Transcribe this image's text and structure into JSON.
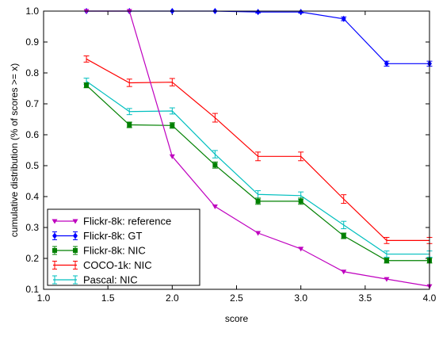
{
  "chart_data": {
    "type": "line",
    "xlabel": "score",
    "ylabel": "cumulative distribution (% of scores >= x)",
    "xlim": [
      1.0,
      4.0
    ],
    "ylim": [
      0.1,
      1.0
    ],
    "xticks": [
      "1.0",
      "1.5",
      "2.0",
      "2.5",
      "3.0",
      "3.5",
      "4.0"
    ],
    "yticks": [
      "0.1",
      "0.2",
      "0.3",
      "0.4",
      "0.5",
      "0.6",
      "0.7",
      "0.8",
      "0.9",
      "1.0"
    ],
    "grid": false,
    "legend_position": "bottom-left",
    "series": [
      {
        "name": "Flickr-8k: reference",
        "color": "#bf00bf",
        "marker": "triangle-down",
        "x": [
          1.333,
          1.667,
          2.0,
          2.333,
          2.667,
          3.0,
          3.333,
          3.667,
          4.0
        ],
        "y": [
          1.0,
          1.0,
          0.53,
          0.368,
          0.282,
          0.231,
          0.157,
          0.133,
          0.11
        ],
        "errors": [
          0,
          0,
          0,
          0,
          0,
          0,
          0,
          0,
          0
        ]
      },
      {
        "name": "Flickr-8k: GT",
        "color": "#0000ff",
        "marker": "diamond",
        "x": [
          1.333,
          1.667,
          2.0,
          2.333,
          2.667,
          3.0,
          3.333,
          3.667,
          4.0
        ],
        "y": [
          1.0,
          1.0,
          1.0,
          1.0,
          0.997,
          0.997,
          0.975,
          0.83,
          0.83
        ],
        "errors": [
          0,
          0,
          0,
          0,
          0.003,
          0.003,
          0.006,
          0.008,
          0.008
        ]
      },
      {
        "name": "Flickr-8k: NIC",
        "color": "#008000",
        "marker": "square",
        "x": [
          1.333,
          1.667,
          2.0,
          2.333,
          2.667,
          3.0,
          3.333,
          3.667,
          4.0
        ],
        "y": [
          0.76,
          0.632,
          0.63,
          0.502,
          0.385,
          0.385,
          0.273,
          0.193,
          0.193
        ],
        "errors": [
          0.008,
          0.009,
          0.009,
          0.01,
          0.01,
          0.01,
          0.009,
          0.008,
          0.008
        ]
      },
      {
        "name": "COCO-1k: NIC",
        "color": "#ff0000",
        "marker": "none",
        "x": [
          1.333,
          1.667,
          2.0,
          2.333,
          2.667,
          3.0,
          3.333,
          3.667,
          4.0
        ],
        "y": [
          0.845,
          0.768,
          0.77,
          0.655,
          0.53,
          0.53,
          0.392,
          0.258,
          0.258
        ],
        "errors": [
          0.01,
          0.012,
          0.012,
          0.014,
          0.014,
          0.014,
          0.014,
          0.01,
          0.01
        ]
      },
      {
        "name": "Pascal: NIC",
        "color": "#00bfbf",
        "marker": "none",
        "x": [
          1.333,
          1.667,
          2.0,
          2.333,
          2.667,
          3.0,
          3.333,
          3.667,
          4.0
        ],
        "y": [
          0.773,
          0.675,
          0.677,
          0.537,
          0.407,
          0.403,
          0.308,
          0.214,
          0.214
        ],
        "errors": [
          0.01,
          0.01,
          0.01,
          0.012,
          0.012,
          0.012,
          0.012,
          0.01,
          0.01
        ]
      }
    ]
  }
}
